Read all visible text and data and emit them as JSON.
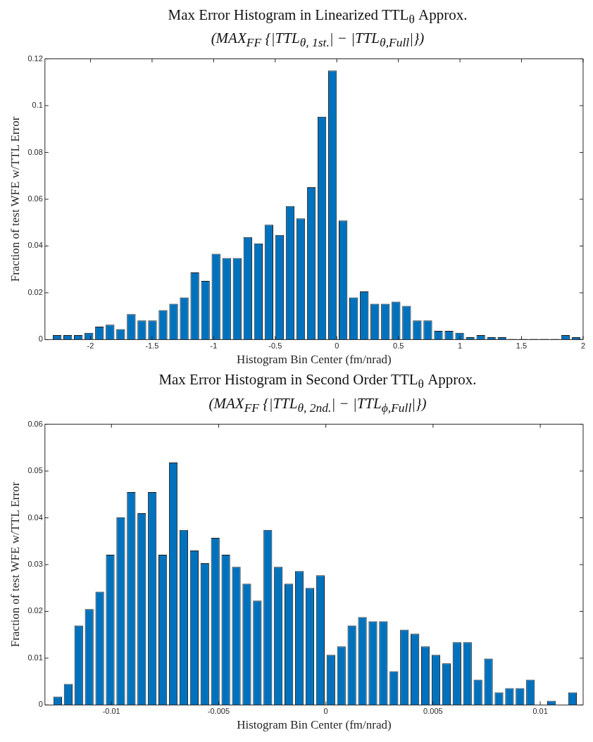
{
  "chart_data": [
    {
      "type": "histogram",
      "title": "Max Error Histogram in Linearized TTL$_{θ}$ Approx.",
      "subtitle": "(MAX$_{FF}$ {|TTL$_{θ, 1st.}$| − |TTL$_{θ,Full}$|})",
      "xlabel": "Histogram Bin Center (fm/nrad)",
      "ylabel": "Fraction of test WFE w/TTL Error",
      "color": "#0072bd",
      "bins": [
        -2.314,
        -2.228,
        -2.142,
        -2.056,
        -1.97,
        -1.884,
        -1.798,
        -1.712,
        -1.626,
        -1.54,
        -1.454,
        -1.368,
        -1.282,
        -1.196,
        -1.11,
        -1.024,
        -0.938,
        -0.852,
        -0.766,
        -0.68,
        -0.594,
        -0.508,
        -0.422,
        -0.336,
        -0.25,
        -0.164,
        -0.078,
        0.008,
        0.094,
        0.18,
        0.266,
        0.352,
        0.438,
        0.524,
        0.61,
        0.696,
        0.782,
        0.868,
        0.954,
        1.04,
        1.126,
        1.212,
        1.298,
        1.384,
        1.47,
        1.556,
        1.642,
        1.728,
        1.814,
        1.9,
        1.986
      ],
      "values": [
        0.0019,
        0.0019,
        0.0019,
        0.0029,
        0.0055,
        0.0064,
        0.0045,
        0.0109,
        0.0082,
        0.0082,
        0.0126,
        0.0153,
        0.018,
        0.0287,
        0.0251,
        0.0367,
        0.0349,
        0.0349,
        0.0438,
        0.0411,
        0.0491,
        0.0447,
        0.0571,
        0.0518,
        0.0651,
        0.0953,
        0.115,
        0.0509,
        0.018,
        0.0206,
        0.0153,
        0.0153,
        0.0162,
        0.0144,
        0.0082,
        0.0082,
        0.0037,
        0.0037,
        0.0029,
        0.001,
        0.0019,
        0.001,
        0.001,
        0.0003,
        0.0003,
        0.0003,
        0.0003,
        0.0003,
        0.0019,
        0.001
      ],
      "xlim": [
        -2.37,
        2
      ],
      "xticks": [
        -2,
        -1.5,
        -1,
        -0.5,
        0,
        0.5,
        1,
        1.5,
        2
      ],
      "ylim": [
        0,
        0.12
      ],
      "yticks": [
        0,
        0.02,
        0.04,
        0.06,
        0.08,
        0.1,
        0.12
      ]
    },
    {
      "type": "histogram",
      "title": "Max Error Histogram in Second Order TTL$_{θ}$ Approx.",
      "subtitle": "(MAX$_{FF}$ {|TTL$_{θ, 2nd.}$| − |TTL$_{ϕ,Full}$|})",
      "xlabel": "Histogram Bin Center (fm/nrad)",
      "ylabel": "Fraction of test WFE w/TTL Error",
      "color": "#0072bd",
      "bins": [
        -0.01275,
        -0.01226,
        -0.01177,
        -0.01128,
        -0.01079,
        -0.0103,
        -0.00981,
        -0.00932,
        -0.00883,
        -0.00834,
        -0.00785,
        -0.00736,
        -0.00687,
        -0.00638,
        -0.00589,
        -0.0054,
        -0.00491,
        -0.00442,
        -0.00393,
        -0.00344,
        -0.00295,
        -0.00246,
        -0.00197,
        -0.00148,
        -0.00099,
        -0.0005,
        -1e-05,
        0.00048,
        0.00097,
        0.00146,
        0.00195,
        0.00244,
        0.00293,
        0.00342,
        0.00391,
        0.0044,
        0.00489,
        0.00538,
        0.00587,
        0.00636,
        0.00685,
        0.00734,
        0.00783,
        0.00832,
        0.00881,
        0.0093,
        0.00979,
        0.01028,
        0.01077,
        0.01126,
        0.01175
      ],
      "values": [
        0.0018,
        0.0045,
        0.017,
        0.0205,
        0.0242,
        0.0321,
        0.0401,
        0.0455,
        0.041,
        0.0455,
        0.0321,
        0.0518,
        0.0374,
        0.033,
        0.0303,
        0.0357,
        0.0321,
        0.0295,
        0.0259,
        0.0223,
        0.0374,
        0.0295,
        0.0259,
        0.0286,
        0.025,
        0.0277,
        0.0107,
        0.0125,
        0.017,
        0.0188,
        0.0179,
        0.0179,
        0.0072,
        0.0161,
        0.0152,
        0.0125,
        0.0107,
        0.0089,
        0.0134,
        0.0134,
        0.0054,
        0.0099,
        0.0027,
        0.0036,
        0.0036,
        0.0054,
        0,
        0.0009,
        0,
        0.0027
      ],
      "xlim": [
        -0.0131,
        0.012
      ],
      "xticks": [
        -0.01,
        -0.005,
        0,
        0.005,
        0.01
      ],
      "ylim": [
        0,
        0.06
      ],
      "yticks": [
        0,
        0.01,
        0.02,
        0.03,
        0.04,
        0.05,
        0.06
      ]
    }
  ]
}
